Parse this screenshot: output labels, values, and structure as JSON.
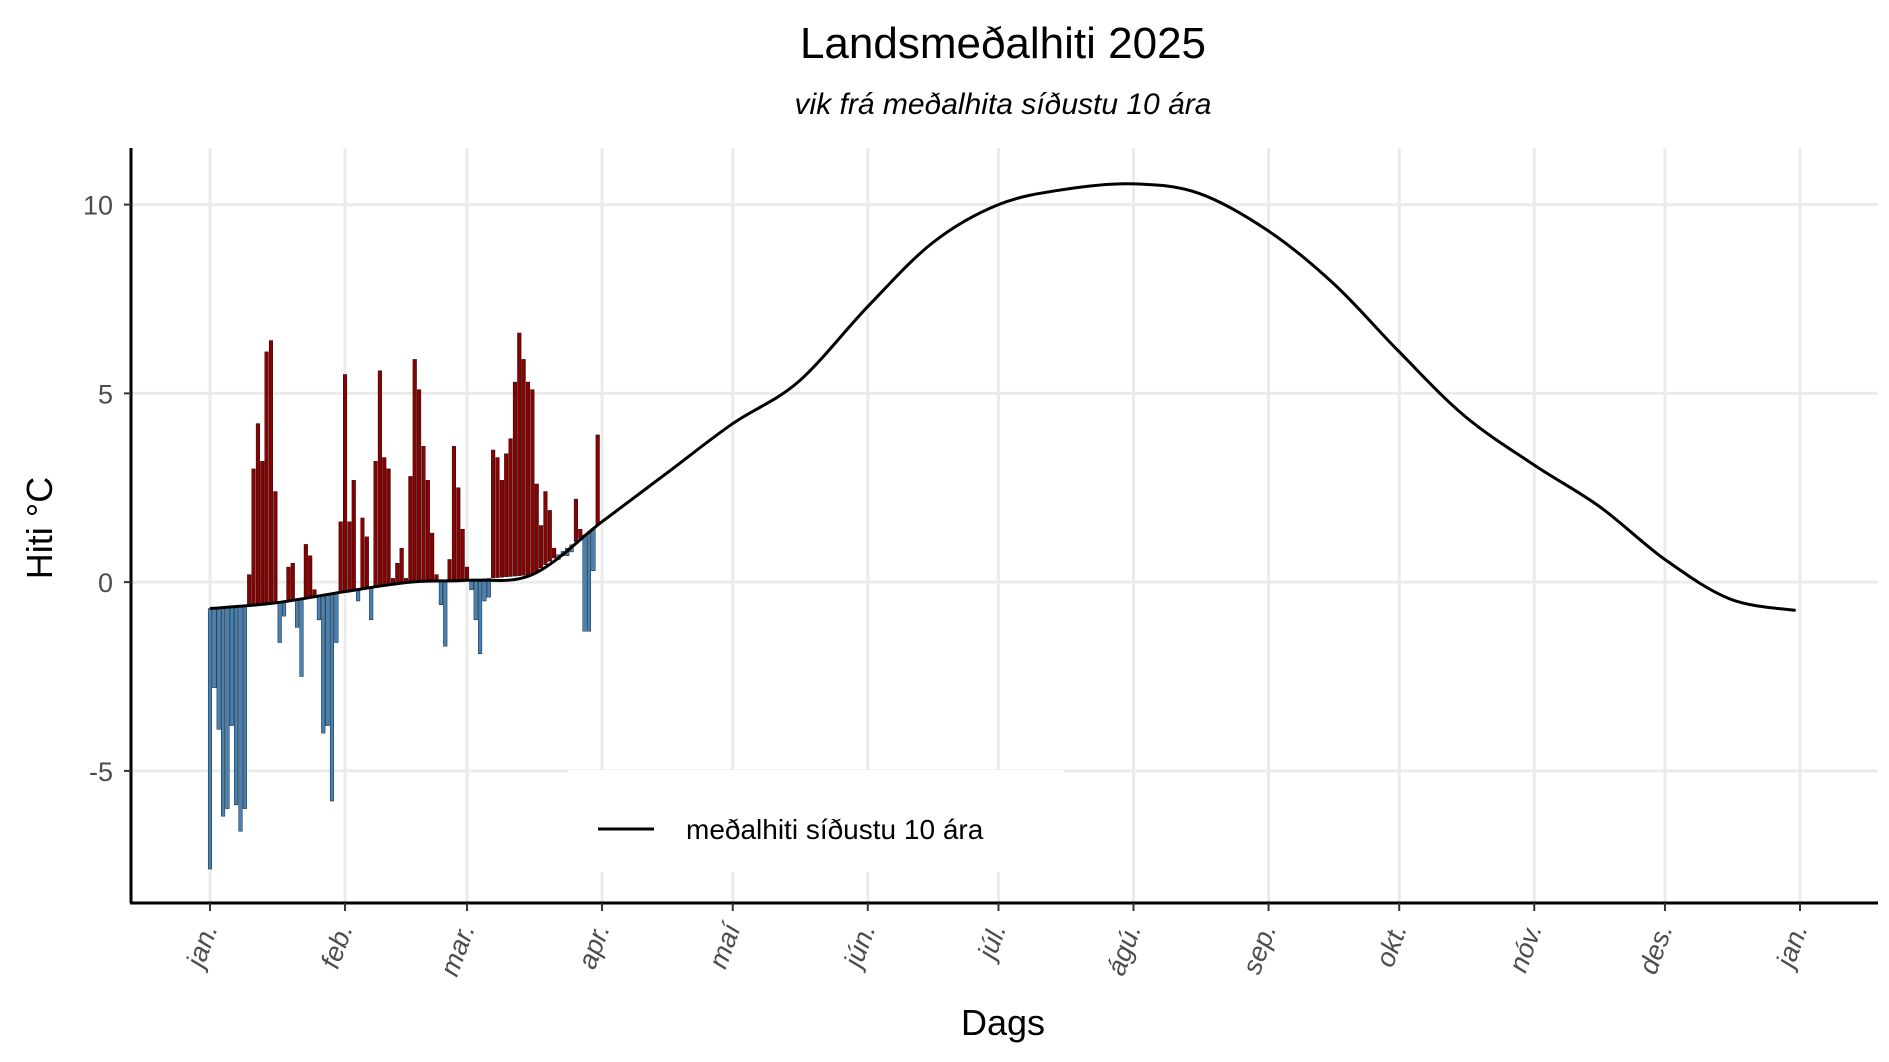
{
  "chart_data": {
    "type": "bar",
    "title": "Landsmeðalhiti 2025",
    "subtitle": "vik frá meðalhita síðustu 10 ára",
    "xlabel": "Dags",
    "ylabel": "Hiti °C",
    "y_ticks": [
      "-5",
      "0",
      "5",
      "10"
    ],
    "ylim": [
      -8.5,
      11.5
    ],
    "x_ticks": [
      "jan.",
      "feb.",
      "mar.",
      "apr.",
      "maí",
      "jún.",
      "júl.",
      "ágú.",
      "sep.",
      "okt.",
      "nóv.",
      "des.",
      "jan."
    ],
    "grid": true,
    "legend": {
      "position": "bottom-center",
      "entries": [
        "meðalhiti síðustu 10 ára"
      ]
    },
    "colors": {
      "above": "#8b0000",
      "below": "#4682b4",
      "line": "#000000"
    },
    "average_line": {
      "name": "meðalhiti síðustu 10 ára",
      "x": [
        "2025-01-01",
        "2025-01-16",
        "2025-02-01",
        "2025-02-16",
        "2025-03-01",
        "2025-03-16",
        "2025-04-01",
        "2025-04-16",
        "2025-05-01",
        "2025-05-16",
        "2025-06-01",
        "2025-06-16",
        "2025-07-01",
        "2025-07-16",
        "2025-08-01",
        "2025-08-16",
        "2025-09-01",
        "2025-09-16",
        "2025-10-01",
        "2025-10-16",
        "2025-11-01",
        "2025-11-16",
        "2025-12-01",
        "2025-12-16",
        "2025-12-31"
      ],
      "y": [
        -0.7,
        -0.55,
        -0.25,
        0.0,
        0.05,
        0.2,
        1.6,
        2.9,
        4.2,
        5.3,
        7.3,
        9.0,
        10.0,
        10.4,
        10.55,
        10.3,
        9.3,
        7.9,
        6.1,
        4.4,
        3.1,
        2.0,
        0.6,
        -0.45,
        -0.75
      ]
    },
    "daily": {
      "x": [
        "2025-01-01",
        "2025-01-02",
        "2025-01-03",
        "2025-01-04",
        "2025-01-05",
        "2025-01-06",
        "2025-01-07",
        "2025-01-08",
        "2025-01-09",
        "2025-01-10",
        "2025-01-11",
        "2025-01-12",
        "2025-01-13",
        "2025-01-14",
        "2025-01-15",
        "2025-01-16",
        "2025-01-17",
        "2025-01-18",
        "2025-01-19",
        "2025-01-20",
        "2025-01-21",
        "2025-01-22",
        "2025-01-23",
        "2025-01-24",
        "2025-01-25",
        "2025-01-26",
        "2025-01-27",
        "2025-01-28",
        "2025-01-29",
        "2025-01-30",
        "2025-01-31",
        "2025-02-01",
        "2025-02-02",
        "2025-02-03",
        "2025-02-04",
        "2025-02-05",
        "2025-02-06",
        "2025-02-07",
        "2025-02-08",
        "2025-02-09",
        "2025-02-10",
        "2025-02-11",
        "2025-02-12",
        "2025-02-13",
        "2025-02-14",
        "2025-02-15",
        "2025-02-16",
        "2025-02-17",
        "2025-02-18",
        "2025-02-19",
        "2025-02-20",
        "2025-02-21",
        "2025-02-22",
        "2025-02-23",
        "2025-02-24",
        "2025-02-25",
        "2025-02-26",
        "2025-02-27",
        "2025-02-28",
        "2025-03-01",
        "2025-03-02",
        "2025-03-03",
        "2025-03-04",
        "2025-03-05",
        "2025-03-06",
        "2025-03-07",
        "2025-03-08",
        "2025-03-09",
        "2025-03-10",
        "2025-03-11",
        "2025-03-12",
        "2025-03-13",
        "2025-03-14",
        "2025-03-15",
        "2025-03-16",
        "2025-03-17",
        "2025-03-18",
        "2025-03-19",
        "2025-03-20",
        "2025-03-21",
        "2025-03-22",
        "2025-03-23",
        "2025-03-24",
        "2025-03-25",
        "2025-03-26",
        "2025-03-27",
        "2025-03-28",
        "2025-03-29",
        "2025-03-30",
        "2025-03-31"
      ],
      "y": [
        -7.6,
        -2.8,
        -3.9,
        -6.2,
        -6.0,
        -3.8,
        -5.9,
        -6.6,
        -6.0,
        0.2,
        3.0,
        4.2,
        3.2,
        6.1,
        6.4,
        2.4,
        -1.6,
        -0.9,
        0.4,
        0.5,
        -1.2,
        -2.5,
        1.0,
        0.7,
        -0.2,
        -1.0,
        -4.0,
        -3.8,
        -5.8,
        -1.6,
        1.6,
        5.5,
        1.6,
        2.7,
        -0.5,
        1.7,
        1.2,
        -1.0,
        3.2,
        5.6,
        3.3,
        3.0,
        0.1,
        0.5,
        0.9,
        0.1,
        2.8,
        5.9,
        5.1,
        3.6,
        2.7,
        1.3,
        0.2,
        -0.6,
        -1.7,
        0.6,
        3.6,
        2.5,
        1.4,
        0.4,
        -0.2,
        -1.0,
        -1.9,
        -0.5,
        -0.4,
        3.5,
        3.3,
        2.7,
        3.4,
        3.8,
        5.3,
        6.6,
        5.9,
        5.3,
        5.1,
        2.6,
        1.5,
        2.4,
        1.9,
        0.9,
        0.6,
        0.7,
        0.7,
        0.8,
        2.2,
        1.4,
        -1.3,
        -1.3,
        0.3,
        3.9
      ]
    }
  }
}
